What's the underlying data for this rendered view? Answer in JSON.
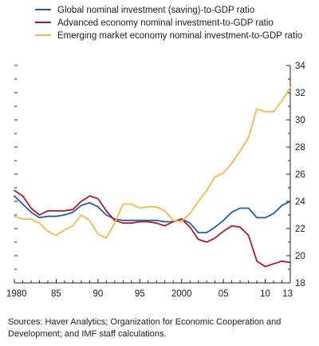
{
  "chart_data": {
    "type": "line",
    "x": [
      1980,
      1981,
      1982,
      1983,
      1984,
      1985,
      1986,
      1987,
      1988,
      1989,
      1990,
      1991,
      1992,
      1993,
      1994,
      1995,
      1996,
      1997,
      1998,
      1999,
      2000,
      2001,
      2002,
      2003,
      2004,
      2005,
      2006,
      2007,
      2008,
      2009,
      2010,
      2011,
      2012,
      2013
    ],
    "series": [
      {
        "name": "Global nominal investment (saving)-to-GDP ratio",
        "color": "#1f5fa8",
        "values": [
          24.4,
          23.8,
          23.2,
          22.8,
          22.9,
          22.9,
          23.0,
          23.2,
          23.7,
          23.9,
          23.6,
          23.0,
          22.7,
          22.6,
          22.6,
          22.6,
          22.6,
          22.6,
          22.5,
          22.5,
          22.7,
          22.4,
          21.7,
          21.7,
          22.1,
          22.6,
          23.2,
          23.5,
          23.5,
          22.8,
          22.8,
          23.1,
          23.7,
          24.0
        ]
      },
      {
        "name": "Advanced economy nominal investment-to-GDP ratio",
        "color": "#b0182c",
        "values": [
          24.8,
          24.4,
          23.5,
          23.0,
          23.3,
          23.3,
          23.3,
          23.4,
          24.0,
          24.4,
          24.2,
          23.3,
          22.6,
          22.4,
          22.4,
          22.5,
          22.5,
          22.4,
          22.2,
          22.5,
          22.7,
          22.1,
          21.2,
          21.0,
          21.3,
          21.8,
          22.2,
          22.1,
          21.5,
          19.6,
          19.2,
          19.4,
          19.6,
          19.5
        ]
      },
      {
        "name": "Emerging market economy nominal investment-to-GDP ratio",
        "color": "#f2b84b",
        "values": [
          22.9,
          22.7,
          22.7,
          22.4,
          21.8,
          21.5,
          21.9,
          22.2,
          23.0,
          22.6,
          21.6,
          21.3,
          22.4,
          23.8,
          23.8,
          23.5,
          23.6,
          23.6,
          23.3,
          22.6,
          22.5,
          23.1,
          24.0,
          24.8,
          25.8,
          26.1,
          26.8,
          27.7,
          28.7,
          30.8,
          30.6,
          30.6,
          31.4,
          32.4
        ]
      }
    ],
    "ylim": [
      18,
      34
    ],
    "yticks": [
      18,
      20,
      22,
      24,
      26,
      28,
      30,
      32,
      34
    ],
    "y_axis_side": "right",
    "xlim": [
      1980,
      2013
    ],
    "xtick_labels": [
      {
        "x": 1980,
        "label": "1980"
      },
      {
        "x": 1985,
        "label": "85"
      },
      {
        "x": 1990,
        "label": "90"
      },
      {
        "x": 1995,
        "label": "95"
      },
      {
        "x": 2000,
        "label": "2000"
      },
      {
        "x": 2005,
        "label": "05"
      },
      {
        "x": 2010,
        "label": "10"
      },
      {
        "x": 2013,
        "label": "13"
      }
    ],
    "grid": false,
    "legend_position": "top-left",
    "title": "",
    "xlabel": "",
    "ylabel": ""
  },
  "source_note": "Sources: Haver Analytics; Organization for Economic Cooperation and Development; and IMF staff calculations."
}
